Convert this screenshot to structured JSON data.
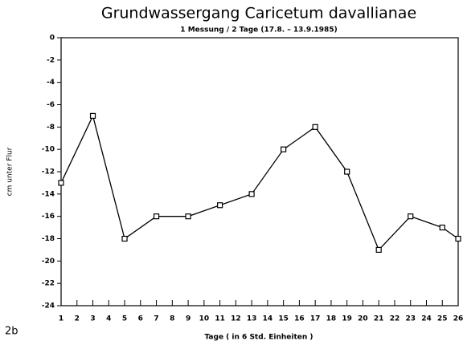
{
  "chart_data": {
    "type": "line",
    "title": "Grundwassergang Caricetum davallianae",
    "subtitle": "1 Messung / 2 Tage (17.8. – 13.9.1985)",
    "x_label": "Tage ( in 6 Std. Einheiten )",
    "y_label": "cm unter Flur",
    "annotations": [
      "2b"
    ],
    "x": [
      1,
      3,
      5,
      7,
      9,
      11,
      13,
      15,
      17,
      19,
      21,
      23,
      25,
      26
    ],
    "series": [
      {
        "color": "#000000",
        "values": [
          -13,
          -7,
          -18,
          -16,
          -16,
          -15,
          -14,
          -10,
          -8,
          -12,
          -19,
          -16,
          -17,
          -18
        ]
      }
    ],
    "xlim": [
      1,
      26
    ],
    "xticks": [
      1,
      2,
      3,
      4,
      5,
      6,
      7,
      8,
      9,
      10,
      11,
      12,
      13,
      14,
      15,
      16,
      17,
      18,
      19,
      20,
      21,
      22,
      23,
      24,
      25,
      26
    ],
    "ylim": [
      -24,
      0
    ],
    "yticks": [
      -24,
      -22,
      -20,
      -18,
      -16,
      -14,
      -12,
      -10,
      -8,
      -6,
      -4,
      -2,
      0
    ],
    "grid": false
  }
}
